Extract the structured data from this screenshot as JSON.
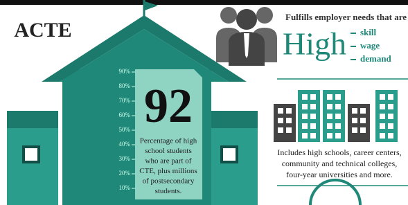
{
  "logo": "ACTE",
  "scale": {
    "labels": [
      "90%",
      "80%",
      "70%",
      "60%",
      "50%",
      "40%",
      "30%",
      "20%",
      "10%"
    ]
  },
  "stat": {
    "value": "92",
    "caption": [
      "Percentage of high",
      "school students",
      "who are part of",
      "CTE, plus millions",
      "of postsecondary",
      "students."
    ]
  },
  "employer": {
    "intro": "Fulfills employer needs that are",
    "headline": "High",
    "items": [
      "skill",
      "wage",
      "demand"
    ]
  },
  "institutions": {
    "caption": [
      "Includes high schools, career centers,",
      "community and technical colleges,",
      "four-year universities and more."
    ]
  }
}
